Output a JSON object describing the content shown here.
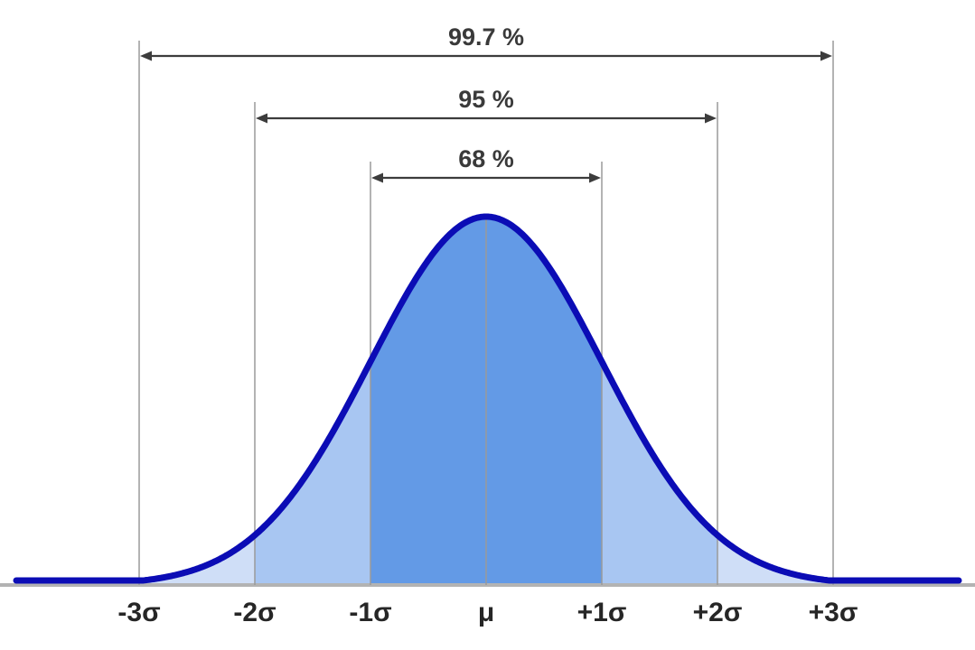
{
  "chart_data": {
    "type": "area",
    "curve": "normal_pdf",
    "title": "",
    "x_tick_labels": [
      "-3σ",
      "-2σ",
      "-1σ",
      "μ",
      "+1σ",
      "+2σ",
      "+3σ"
    ],
    "x_ticks_sigma": [
      -3,
      -2,
      -1,
      0,
      1,
      2,
      3
    ],
    "coverage_intervals": [
      {
        "label": "68 %",
        "value": 68,
        "from_sigma": -1,
        "to_sigma": 1
      },
      {
        "label": "95 %",
        "value": 95,
        "from_sigma": -2,
        "to_sigma": 2
      },
      {
        "label": "99.7 %",
        "value": 99.7,
        "from_sigma": -3,
        "to_sigma": 3
      }
    ],
    "regions": [
      {
        "from_sigma": -5,
        "to_sigma": -2,
        "color": "#cfdef7"
      },
      {
        "from_sigma": 2,
        "to_sigma": 5,
        "color": "#cfdef7"
      },
      {
        "from_sigma": -2,
        "to_sigma": -1,
        "color": "#a8c6f2"
      },
      {
        "from_sigma": 1,
        "to_sigma": 2,
        "color": "#a8c6f2"
      },
      {
        "from_sigma": -1,
        "to_sigma": 1,
        "color": "#639ae6"
      }
    ]
  },
  "colors": {
    "curve": "#0b0cb5",
    "gridline": "#9a9a9a",
    "baseline": "#b3b3b3",
    "arrow": "#3c3c3c",
    "label": "#3a3a3a",
    "tick_label": "#262626",
    "background": "#ffffff"
  }
}
